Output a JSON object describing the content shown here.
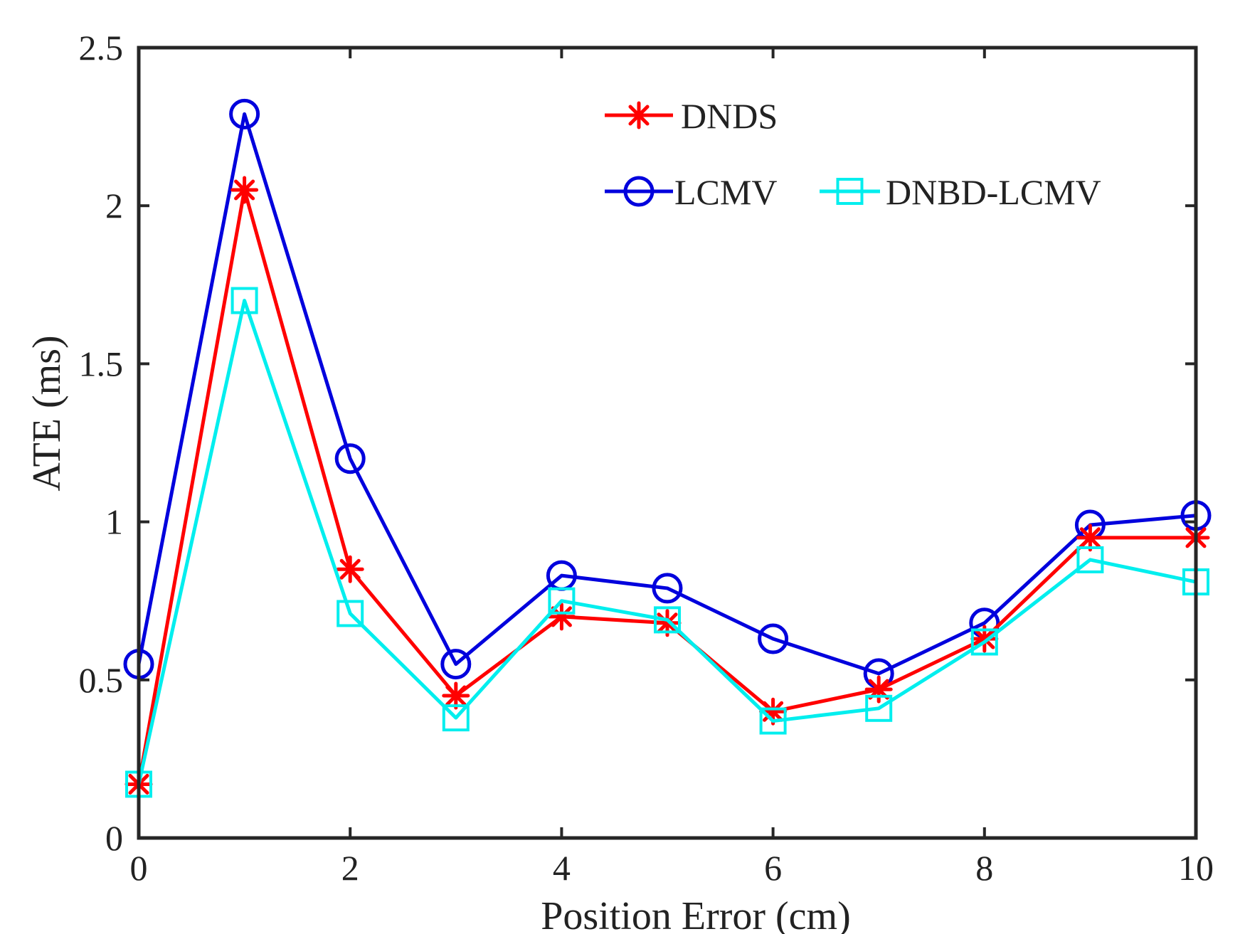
{
  "chart_data": {
    "type": "line",
    "title": "",
    "xlabel": "Position Error (cm)",
    "ylabel": "ATE  (ms)",
    "xlim": [
      0,
      10
    ],
    "ylim": [
      0,
      2.5
    ],
    "xticks": [
      0,
      2,
      4,
      6,
      8,
      10
    ],
    "xtick_labels": [
      "0",
      "2",
      "4",
      "6",
      "8",
      "10"
    ],
    "yticks": [
      0,
      0.5,
      1,
      1.5,
      2,
      2.5
    ],
    "ytick_labels": [
      "0",
      "0.5",
      "1",
      "1.5",
      "2",
      "2.5"
    ],
    "grid": false,
    "legend_position": "top-right",
    "x": [
      0,
      1,
      2,
      3,
      4,
      5,
      6,
      7,
      8,
      9,
      10
    ],
    "series": [
      {
        "name": "DNDS",
        "color": "#ff0000",
        "marker": "asterisk",
        "values": [
          0.17,
          2.05,
          0.85,
          0.45,
          0.7,
          0.68,
          0.4,
          0.47,
          0.63,
          0.95,
          0.95
        ]
      },
      {
        "name": "LCMV",
        "color": "#0000dd",
        "marker": "circle",
        "values": [
          0.55,
          2.29,
          1.2,
          0.55,
          0.83,
          0.79,
          0.63,
          0.52,
          0.68,
          0.99,
          1.02
        ]
      },
      {
        "name": "DNBD-LCMV",
        "color": "#00eeee",
        "marker": "square",
        "values": [
          0.17,
          1.7,
          0.71,
          0.38,
          0.75,
          0.69,
          0.37,
          0.41,
          0.62,
          0.88,
          0.81
        ]
      }
    ]
  }
}
